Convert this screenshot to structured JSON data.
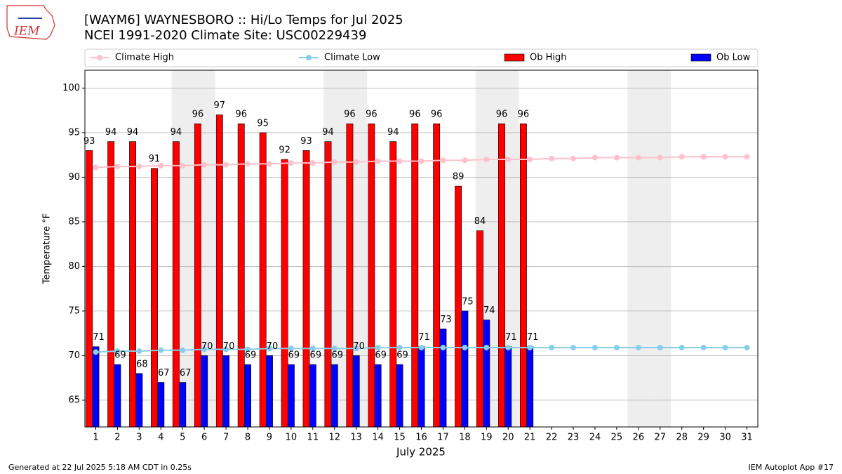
{
  "logo_text": "IEM",
  "footer_left": "Generated at 22 Jul 2025 5:18 AM CDT in 0.25s",
  "footer_right": "IEM Autoplot App #17",
  "chart_data": {
    "type": "bar",
    "title": "[WAYM6] WAYNESBORO :: Hi/Lo Temps for Jul 2025",
    "subtitle": "NCEI 1991-2020 Climate Site: USC00229439",
    "x_label": "July 2025",
    "y_label": "Temperature °F",
    "categories": [
      "1",
      "2",
      "3",
      "4",
      "5",
      "6",
      "7",
      "8",
      "9",
      "10",
      "11",
      "12",
      "13",
      "14",
      "15",
      "16",
      "17",
      "18",
      "19",
      "20",
      "21",
      "22",
      "23",
      "24",
      "25",
      "26",
      "27",
      "28",
      "29",
      "30",
      "31"
    ],
    "shaded_days": [
      5,
      6,
      12,
      13,
      19,
      20,
      26,
      27
    ],
    "shade_color": "#eeeeee",
    "series": [
      {
        "name": "Climate High",
        "type": "line",
        "color": "#ffc0cb",
        "values": [
          91.1,
          91.2,
          91.2,
          91.3,
          91.3,
          91.4,
          91.4,
          91.5,
          91.5,
          91.6,
          91.6,
          91.7,
          91.7,
          91.8,
          91.8,
          91.8,
          91.9,
          91.9,
          92.0,
          92.0,
          92.0,
          92.1,
          92.1,
          92.2,
          92.2,
          92.2,
          92.2,
          92.3,
          92.3,
          92.3,
          92.3
        ]
      },
      {
        "name": "Climate Low",
        "type": "line",
        "color": "#87ceeb",
        "values": [
          70.4,
          70.5,
          70.5,
          70.6,
          70.6,
          70.7,
          70.7,
          70.7,
          70.8,
          70.8,
          70.8,
          70.8,
          70.8,
          70.9,
          70.9,
          70.9,
          70.9,
          70.9,
          70.9,
          70.9,
          70.9,
          70.9,
          70.9,
          70.9,
          70.9,
          70.9,
          70.9,
          70.9,
          70.9,
          70.9,
          70.9
        ]
      },
      {
        "name": "Ob High",
        "type": "bar",
        "color": "#ff0000",
        "values": [
          93,
          94,
          94,
          91,
          94,
          96,
          97,
          96,
          95,
          92,
          93,
          94,
          96,
          96,
          94,
          96,
          96,
          89,
          84,
          96,
          96,
          null,
          null,
          null,
          null,
          null,
          null,
          null,
          null,
          null,
          null
        ]
      },
      {
        "name": "Ob Low",
        "type": "bar",
        "color": "#0000ff",
        "values": [
          71,
          69,
          68,
          67,
          67,
          70,
          70,
          69,
          70,
          69,
          69,
          69,
          70,
          69,
          69,
          71,
          73,
          75,
          74,
          71,
          71,
          null,
          null,
          null,
          null,
          null,
          null,
          null,
          null,
          null,
          null
        ]
      }
    ],
    "xlim": [
      0.5,
      31.5
    ],
    "ylim": [
      62,
      102
    ],
    "yticks": [
      65,
      70,
      75,
      80,
      85,
      90,
      95,
      100
    ],
    "grid": true
  }
}
